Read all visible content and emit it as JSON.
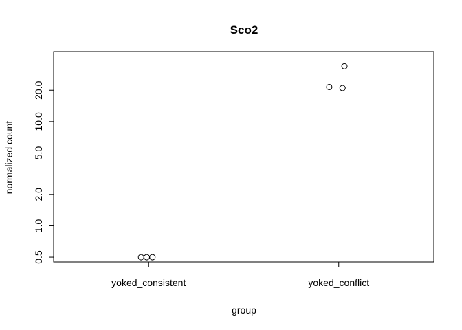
{
  "chart_data": {
    "type": "scatter",
    "title": "Sco2",
    "xlabel": "group",
    "ylabel": "normalized count",
    "x_scale": "categorical",
    "y_scale": "log",
    "ylim": [
      0.45,
      47
    ],
    "grid": false,
    "legend": "none",
    "categories": [
      "yoked_consistent",
      "yoked_conflict"
    ],
    "yticks": [
      0.5,
      1.0,
      2.0,
      5.0,
      10.0,
      20.0
    ],
    "ytick_labels": [
      "0.5",
      "1.0",
      "2.0",
      "5.0",
      "10.0",
      "20.0"
    ],
    "points": [
      {
        "category": "yoked_consistent",
        "jitter": -0.04,
        "y": 0.5
      },
      {
        "category": "yoked_consistent",
        "jitter": -0.01,
        "y": 0.5
      },
      {
        "category": "yoked_consistent",
        "jitter": 0.02,
        "y": 0.5
      },
      {
        "category": "yoked_conflict",
        "jitter": -0.05,
        "y": 21.5
      },
      {
        "category": "yoked_conflict",
        "jitter": 0.02,
        "y": 21
      },
      {
        "category": "yoked_conflict",
        "jitter": 0.03,
        "y": 34
      }
    ],
    "colors": {
      "points": "#000000",
      "axis": "#000000",
      "background": "#ffffff"
    }
  }
}
